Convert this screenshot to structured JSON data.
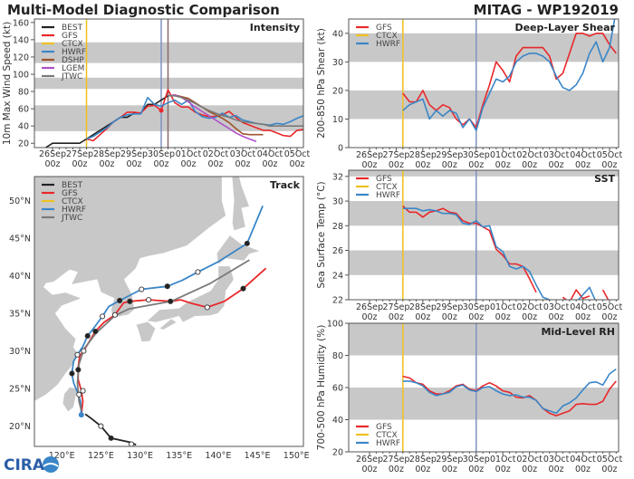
{
  "header": {
    "title": "Multi-Model Diagnostic Comparison",
    "storm": "MITAG - WP192019"
  },
  "colors": {
    "BEST": "#222222",
    "GFS": "#e8282b",
    "CTCX": "#f0c020",
    "HWRF": "#3a86c8",
    "DSHP": "#a0522d",
    "LGEM": "#b050c8",
    "JTWC": "#7a7a7a",
    "band": "#c8c8c8",
    "land": "#c8c8c8",
    "current_time_line": "#7f93c0",
    "dshp_time_line": "#8a6a6a"
  },
  "x_ticks": [
    {
      "date": "26Sep",
      "hour": "00z",
      "t": "2019-09-26T00"
    },
    {
      "date": "27Sep",
      "hour": "00z",
      "t": "2019-09-27T00"
    },
    {
      "date": "28Sep",
      "hour": "00z",
      "t": "2019-09-28T00"
    },
    {
      "date": "29Sep",
      "hour": "00z",
      "t": "2019-09-29T00"
    },
    {
      "date": "30Sep",
      "hour": "00z",
      "t": "2019-09-30T00"
    },
    {
      "date": "01Oct",
      "hour": "00z",
      "t": "2019-10-01T00"
    },
    {
      "date": "02Oct",
      "hour": "00z",
      "t": "2019-10-02T00"
    },
    {
      "date": "03Oct",
      "hour": "00z",
      "t": "2019-10-03T00"
    },
    {
      "date": "04Oct",
      "hour": "00z",
      "t": "2019-10-04T00"
    },
    {
      "date": "05Oct",
      "hour": "00z",
      "t": "2019-10-05T00"
    }
  ],
  "chart_data": [
    {
      "id": "intensity",
      "type": "line",
      "title": "Intensity",
      "ylabel": "10m Max Wind Speed (kt)",
      "ylim": [
        15,
        164
      ],
      "yticks": [
        20,
        40,
        60,
        80,
        100,
        120,
        140,
        160
      ],
      "bands": [
        [
          34,
          64
        ],
        [
          83,
          96
        ],
        [
          113,
          137
        ]
      ],
      "vlines": [
        {
          "t": "2019-09-27T06",
          "color": "CTCX"
        },
        {
          "t": "2019-09-30T00",
          "color": "current_time_line"
        },
        {
          "t": "2019-09-30T06",
          "color": "dshp_time_line"
        }
      ],
      "legend": [
        "BEST",
        "GFS",
        "CTCX",
        "HWRF",
        "DSHP",
        "LGEM",
        "JTWC"
      ],
      "legend_position": "upper-left",
      "step_hours": 6,
      "series": [
        {
          "name": "BEST",
          "start": "2019-09-25T18",
          "values": [
            15,
            20,
            20,
            20,
            20,
            20,
            25,
            30,
            35,
            40,
            45,
            50,
            50,
            55,
            55,
            65,
            65,
            70,
            75
          ]
        },
        {
          "name": "GFS",
          "start": "2019-09-27T06",
          "values": [
            25,
            23,
            30,
            37,
            45,
            50,
            56,
            56,
            55,
            63,
            64,
            58,
            82,
            67,
            62,
            62,
            56,
            53,
            51,
            51,
            53,
            57,
            50,
            44,
            41,
            38,
            35,
            35,
            32,
            29,
            28,
            35,
            36
          ]
        },
        {
          "name": "HWRF",
          "start": "2019-09-27T06",
          "values": [
            25,
            28,
            33,
            38,
            45,
            50,
            53,
            54,
            54,
            73,
            65,
            63,
            67,
            70,
            65,
            70,
            57,
            51,
            49,
            50,
            55,
            50,
            52,
            47,
            45,
            43,
            42,
            41,
            43,
            42,
            45,
            49,
            52
          ]
        },
        {
          "name": "DSHP",
          "start": "2019-09-30T06",
          "values": [
            75,
            76,
            74,
            72,
            67,
            62,
            57,
            53,
            49,
            44,
            37,
            31,
            30,
            30,
            30
          ]
        },
        {
          "name": "LGEM",
          "start": "2019-09-30T06",
          "values": [
            75,
            76,
            73,
            68,
            62,
            57,
            52,
            47,
            42,
            37,
            32,
            28,
            25,
            22
          ]
        },
        {
          "name": "JTWC",
          "start": "2019-09-30T06",
          "values": [
            75,
            75,
            73,
            70,
            66,
            62,
            58,
            55,
            52,
            50,
            47,
            45,
            44,
            43,
            42,
            40,
            40,
            40,
            40,
            40,
            40
          ]
        }
      ]
    },
    {
      "id": "shear",
      "type": "line",
      "title": "Deep-Layer Shear",
      "ylabel": "200-850 hPa Shear (kt)",
      "ylim": [
        0,
        45
      ],
      "yticks": [
        0,
        10,
        20,
        30,
        40
      ],
      "bands": [
        [
          10,
          20
        ],
        [
          30,
          40
        ]
      ],
      "vlines": [
        {
          "t": "2019-09-27T06",
          "color": "CTCX"
        },
        {
          "t": "2019-09-30T00",
          "color": "current_time_line"
        }
      ],
      "legend": [
        "GFS",
        "CTCX",
        "HWRF"
      ],
      "legend_position": "upper-left",
      "step_hours": 6,
      "series": [
        {
          "name": "GFS",
          "start": "2019-09-27T06",
          "values": [
            19,
            16,
            16,
            20,
            15,
            13,
            15,
            14,
            10,
            8,
            10,
            7,
            15,
            22,
            30,
            27,
            23,
            32,
            35,
            35,
            35,
            35,
            32,
            24,
            26,
            33,
            40,
            40,
            39,
            40,
            40,
            36,
            33
          ]
        },
        {
          "name": "HWRF",
          "start": "2019-09-27T06",
          "values": [
            13,
            15,
            16,
            17,
            10,
            13,
            11,
            13,
            12,
            7,
            10,
            6,
            14,
            19,
            24,
            23,
            25,
            30,
            32,
            33,
            33,
            32,
            30,
            25,
            21,
            20,
            22,
            26,
            33,
            37,
            30,
            35,
            48
          ]
        }
      ]
    },
    {
      "id": "sst",
      "type": "line",
      "title": "SST",
      "ylabel": "Sea Surface Temp (°C)",
      "ylim": [
        22,
        32.5
      ],
      "yticks": [
        22,
        24,
        26,
        28,
        30,
        32
      ],
      "bands": [
        [
          24,
          26
        ],
        [
          28,
          30
        ],
        [
          32,
          34
        ]
      ],
      "vlines": [
        {
          "t": "2019-09-27T06",
          "color": "CTCX"
        },
        {
          "t": "2019-09-30T00",
          "color": "current_time_line"
        }
      ],
      "legend": [
        "GFS",
        "CTCX",
        "HWRF"
      ],
      "legend_position": "upper-left",
      "step_hours": 6,
      "series": [
        {
          "name": "GFS",
          "start": "2019-09-27T06",
          "values": [
            29.6,
            29.1,
            29.1,
            28.7,
            29.1,
            29.2,
            29.4,
            29.1,
            29.0,
            28.4,
            28.2,
            28.2,
            27.9,
            27.6,
            26.1,
            25.6,
            24.9,
            24.9,
            24.7,
            23.7,
            22.6,
            null,
            null,
            null,
            22.2,
            21.8,
            22.8,
            22.1,
            22.3,
            null,
            22.8,
            21.8
          ]
        },
        {
          "name": "HWRF",
          "start": "2019-09-27T06",
          "values": [
            29.4,
            29.4,
            29.4,
            29.2,
            29.3,
            29.2,
            29.0,
            29.0,
            28.9,
            28.2,
            28.1,
            28.4,
            27.9,
            28.0,
            26.3,
            25.9,
            24.7,
            24.5,
            24.7,
            24.3,
            23.2,
            22.2,
            22.0,
            21.8,
            null,
            null,
            21.8,
            22.4,
            23.0,
            21.8
          ]
        }
      ]
    },
    {
      "id": "rh",
      "type": "line",
      "title": "Mid-Level RH",
      "ylabel": "700-500 hPa Humidity (%)",
      "ylim": [
        20,
        100
      ],
      "yticks": [
        20,
        40,
        60,
        80,
        100
      ],
      "bands": [
        [
          40,
          60
        ],
        [
          80,
          100
        ]
      ],
      "vlines": [
        {
          "t": "2019-09-27T06",
          "color": "CTCX"
        },
        {
          "t": "2019-09-30T00",
          "color": "current_time_line"
        }
      ],
      "legend": [
        "GFS",
        "CTCX",
        "HWRF"
      ],
      "legend_position": "lower-left",
      "step_hours": 6,
      "series": [
        {
          "name": "GFS",
          "start": "2019-09-27T06",
          "values": [
            67,
            66,
            63,
            62,
            58,
            56,
            56,
            58,
            61,
            62,
            59,
            58,
            61,
            63,
            61,
            58,
            57,
            54,
            53.5,
            55,
            52,
            47,
            44,
            42.5,
            44,
            45.5,
            49.5,
            50,
            49.5,
            49.5,
            51.5,
            59,
            64
          ]
        },
        {
          "name": "HWRF",
          "start": "2019-09-27T06",
          "values": [
            64,
            64,
            63,
            61,
            57,
            55,
            56,
            57,
            60.5,
            61.5,
            58.5,
            57.5,
            60,
            60.5,
            58,
            56,
            55,
            55.5,
            54,
            54,
            52,
            47,
            45.5,
            44,
            48.5,
            50.5,
            53.5,
            58.5,
            63,
            63.5,
            61.5,
            68.5,
            71.5
          ]
        }
      ]
    },
    {
      "id": "track",
      "type": "line",
      "title": "Track",
      "xlim": [
        116.5,
        150.9
      ],
      "ylim": [
        17.3,
        53.2
      ],
      "xticks": [
        {
          "v": 120,
          "label": "120°E"
        },
        {
          "v": 125,
          "label": "125°E"
        },
        {
          "v": 130,
          "label": "130°E"
        },
        {
          "v": 135,
          "label": "135°E"
        },
        {
          "v": 140,
          "label": "140°E"
        },
        {
          "v": 145,
          "label": "145°E"
        },
        {
          "v": 150,
          "label": "150°E"
        }
      ],
      "yticks": [
        {
          "v": 20,
          "label": "20°N"
        },
        {
          "v": 25,
          "label": "25°N"
        },
        {
          "v": 30,
          "label": "30°N"
        },
        {
          "v": 35,
          "label": "35°N"
        },
        {
          "v": 40,
          "label": "40°N"
        },
        {
          "v": 45,
          "label": "45°N"
        },
        {
          "v": 50,
          "label": "50°N"
        }
      ],
      "legend": [
        "BEST",
        "GFS",
        "CTCX",
        "HWRF",
        "JTWC"
      ],
      "legend_position": "upper-left",
      "series": [
        {
          "name": "BEST",
          "points": [
            [
              129.5,
              17.5
            ],
            [
              128.9,
              17.8
            ],
            [
              126.3,
              18.4
            ],
            [
              125,
              20
            ],
            [
              123.8,
              21
            ],
            [
              123,
              21.6
            ]
          ]
        },
        {
          "name": "GFS",
          "points": [
            [
              122.5,
              21.5
            ],
            [
              122.7,
              23.3
            ],
            [
              122.5,
              24.7
            ],
            [
              122.1,
              26.2
            ],
            [
              122.1,
              27.8
            ],
            [
              122.3,
              29.4
            ],
            [
              122.8,
              30
            ],
            [
              124.3,
              32.6
            ],
            [
              125.4,
              33.8
            ],
            [
              126.8,
              34.8
            ],
            [
              127.9,
              36.4
            ],
            [
              128.7,
              36.6
            ],
            [
              131.1,
              36.8
            ],
            [
              133.9,
              36.6
            ],
            [
              135.2,
              36.8
            ],
            [
              136.7,
              36.3
            ],
            [
              138.6,
              35.8
            ],
            [
              140.8,
              36.6
            ],
            [
              143.2,
              38.3
            ],
            [
              146.1,
              41.0
            ]
          ]
        },
        {
          "name": "HWRF",
          "points": [
            [
              122.5,
              21.5
            ],
            [
              122.4,
              23.3
            ],
            [
              122.0,
              24.5
            ],
            [
              121.5,
              25.8
            ],
            [
              121.3,
              27.0
            ],
            [
              121.5,
              28.6
            ],
            [
              122.0,
              29.5
            ],
            [
              122.7,
              30.6
            ],
            [
              123.3,
              32.0
            ],
            [
              124.2,
              33.2
            ],
            [
              125.2,
              34.6
            ],
            [
              126.0,
              35.9
            ],
            [
              127.4,
              36.7
            ],
            [
              130.2,
              38.2
            ],
            [
              133.5,
              38.6
            ],
            [
              135.4,
              39.4
            ],
            [
              137.4,
              40.5
            ],
            [
              139.9,
              41.8
            ],
            [
              143.7,
              44.3
            ],
            [
              145.7,
              49.3
            ]
          ]
        },
        {
          "name": "JTWC",
          "points": [
            [
              122.5,
              22.1
            ],
            [
              122.2,
              23.3
            ],
            [
              122.0,
              25.8
            ],
            [
              122.2,
              28.2
            ],
            [
              122.8,
              30.2
            ],
            [
              124.4,
              32.4
            ],
            [
              126.8,
              34.7
            ],
            [
              128.6,
              35.6
            ],
            [
              134.0,
              36.6
            ],
            [
              139.0,
              39.0
            ],
            [
              144.0,
              42.1
            ]
          ]
        }
      ],
      "markers": [
        {
          "lon": 128.9,
          "lat": 17.6,
          "style": "open"
        },
        {
          "lon": 126.3,
          "lat": 18.4,
          "style": "filled"
        },
        {
          "lon": 125,
          "lat": 20,
          "style": "open"
        },
        {
          "lon": 122.7,
          "lat": 24.7,
          "style": "open"
        },
        {
          "lon": 122.2,
          "lat": 24.2,
          "style": "open"
        },
        {
          "lon": 122.1,
          "lat": 27.5,
          "style": "filled"
        },
        {
          "lon": 121.3,
          "lat": 27.0,
          "style": "filled"
        },
        {
          "lon": 122.0,
          "lat": 29.5,
          "style": "open"
        },
        {
          "lon": 122.8,
          "lat": 30.0,
          "style": "open"
        },
        {
          "lon": 123.3,
          "lat": 32.0,
          "style": "filled"
        },
        {
          "lon": 124.3,
          "lat": 32.6,
          "style": "filled"
        },
        {
          "lon": 125.2,
          "lat": 34.6,
          "style": "open"
        },
        {
          "lon": 126.8,
          "lat": 34.8,
          "style": "open"
        },
        {
          "lon": 127.4,
          "lat": 36.7,
          "style": "filled"
        },
        {
          "lon": 128.7,
          "lat": 36.6,
          "style": "filled"
        },
        {
          "lon": 130.2,
          "lat": 38.2,
          "style": "open"
        },
        {
          "lon": 131.1,
          "lat": 36.8,
          "style": "open"
        },
        {
          "lon": 133.5,
          "lat": 38.6,
          "style": "filled"
        },
        {
          "lon": 133.9,
          "lat": 36.6,
          "style": "filled"
        },
        {
          "lon": 137.4,
          "lat": 40.5,
          "style": "open"
        },
        {
          "lon": 138.6,
          "lat": 35.8,
          "style": "open"
        },
        {
          "lon": 143.2,
          "lat": 38.3,
          "style": "filled"
        },
        {
          "lon": 143.7,
          "lat": 44.3,
          "style": "filled"
        }
      ]
    }
  ],
  "logo": {
    "text": "CIRA"
  }
}
